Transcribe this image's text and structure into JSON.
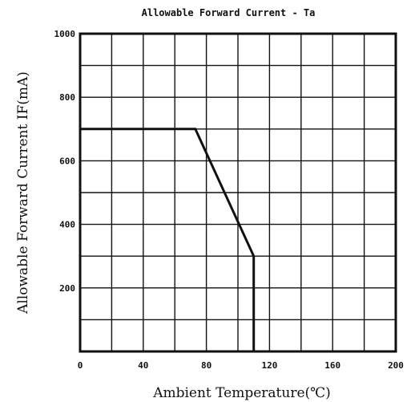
{
  "chart_data": {
    "type": "line",
    "title": "Allowable Forward Current - Ta",
    "xlabel": "Ambient Temperature(℃)",
    "ylabel": "Allowable Forward Current  IF(mA)",
    "xlim": [
      0,
      200
    ],
    "ylim": [
      0,
      1000
    ],
    "x_ticks": [
      0,
      40,
      80,
      120,
      160,
      200
    ],
    "y_ticks": [
      200,
      400,
      600,
      800,
      1000
    ],
    "x_grid_step": 20,
    "y_grid_step": 100,
    "grid": true,
    "series": [
      {
        "x": [
          0,
          73,
          110,
          110
        ],
        "y": [
          700,
          700,
          300,
          0
        ]
      }
    ]
  }
}
